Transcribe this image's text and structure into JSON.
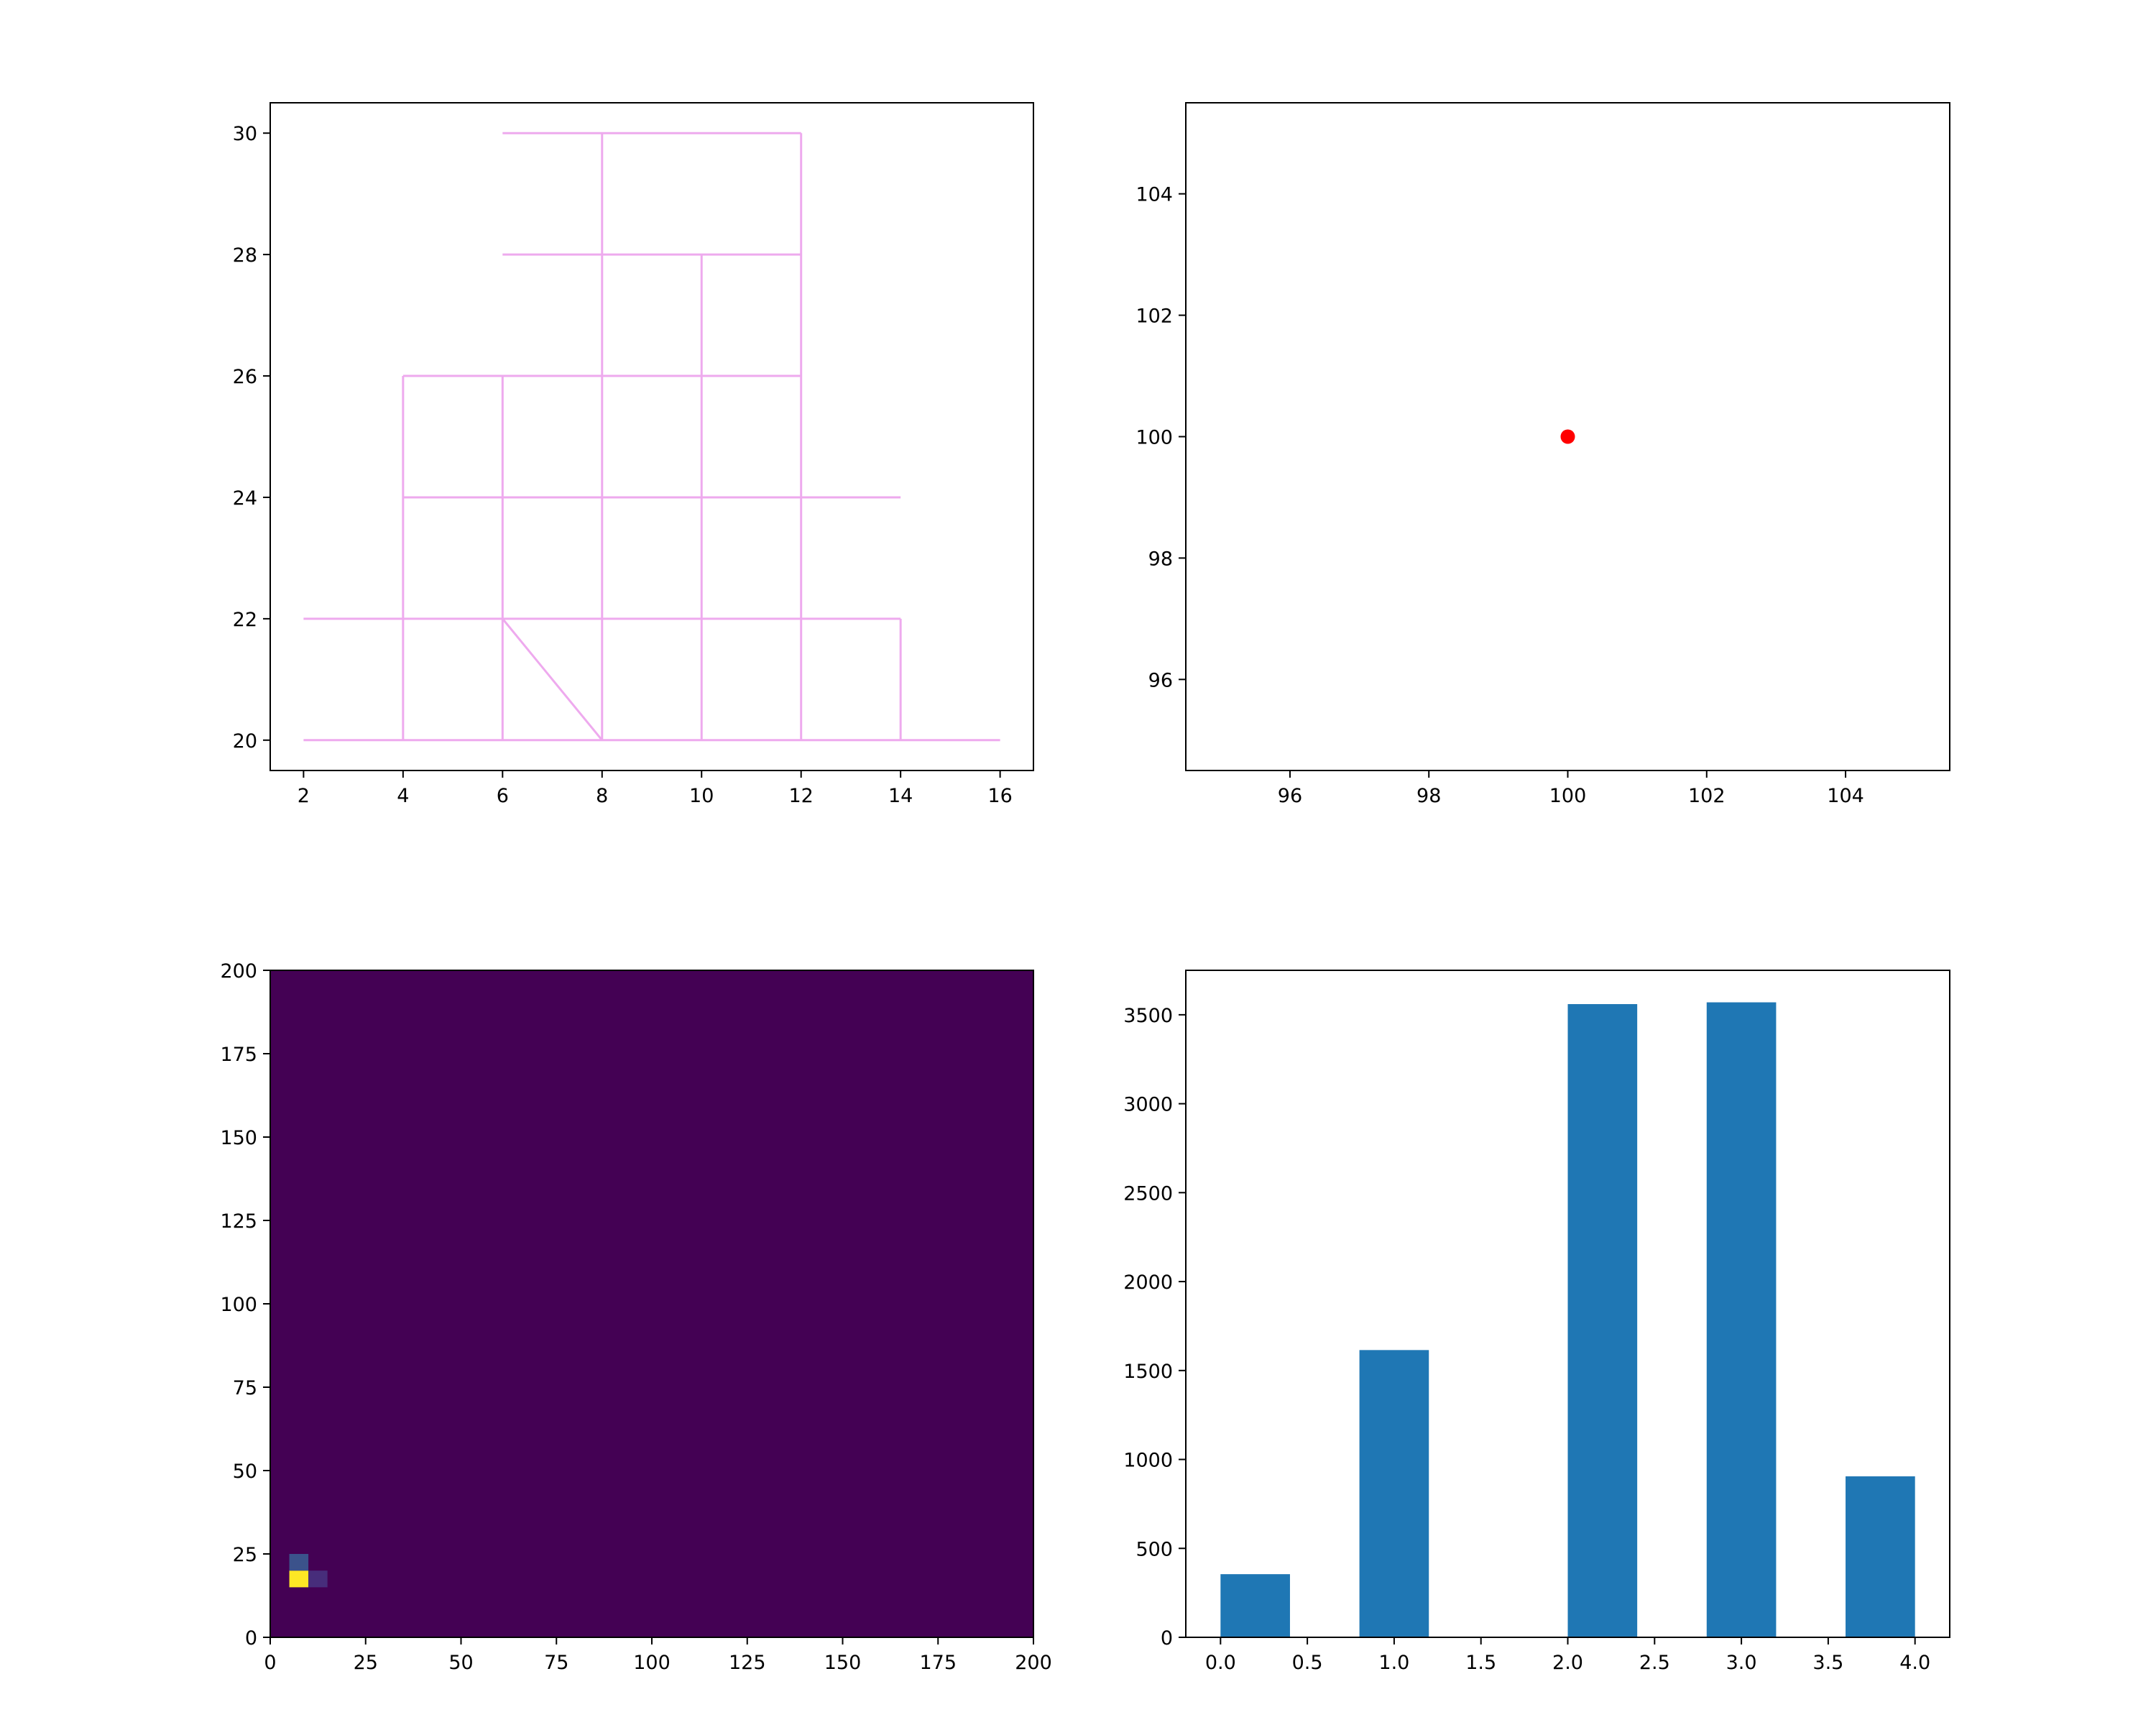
{
  "chart_data": [
    {
      "type": "line",
      "title": "",
      "xlabel": "",
      "ylabel": "",
      "xlim": [
        1.33,
        16.67
      ],
      "ylim": [
        19.5,
        30.5
      ],
      "xticks": [
        2,
        4,
        6,
        8,
        10,
        12,
        14,
        16
      ],
      "yticks": [
        20,
        22,
        24,
        26,
        28,
        30
      ],
      "grid": false,
      "color": "#eeaaee",
      "segments": [
        [
          [
            2,
            20
          ],
          [
            16,
            20
          ]
        ],
        [
          [
            2,
            22
          ],
          [
            14,
            22
          ]
        ],
        [
          [
            4,
            24
          ],
          [
            14,
            24
          ]
        ],
        [
          [
            4,
            26
          ],
          [
            12,
            26
          ]
        ],
        [
          [
            6,
            28
          ],
          [
            12,
            28
          ]
        ],
        [
          [
            6,
            30
          ],
          [
            12,
            30
          ]
        ],
        [
          [
            4,
            20
          ],
          [
            4,
            26
          ]
        ],
        [
          [
            6,
            20
          ],
          [
            6,
            26
          ]
        ],
        [
          [
            8,
            20
          ],
          [
            8,
            30
          ]
        ],
        [
          [
            10,
            20
          ],
          [
            10,
            28
          ]
        ],
        [
          [
            12,
            20
          ],
          [
            12,
            30
          ]
        ],
        [
          [
            14,
            20
          ],
          [
            14,
            22
          ]
        ],
        [
          [
            6,
            22
          ],
          [
            8,
            20
          ]
        ]
      ]
    },
    {
      "type": "scatter",
      "title": "",
      "xlabel": "",
      "ylabel": "",
      "xlim": [
        94.5,
        105.5
      ],
      "ylim": [
        94.5,
        105.5
      ],
      "xticks": [
        96,
        98,
        100,
        102,
        104
      ],
      "yticks": [
        96,
        98,
        100,
        102,
        104
      ],
      "grid": false,
      "color": "#ff0000",
      "points": [
        [
          100,
          100
        ]
      ]
    },
    {
      "type": "heatmap",
      "title": "",
      "xlabel": "",
      "ylabel": "",
      "xlim": [
        0,
        200
      ],
      "ylim": [
        0,
        200
      ],
      "xticks": [
        0,
        25,
        50,
        75,
        100,
        125,
        150,
        175,
        200
      ],
      "yticks": [
        0,
        25,
        50,
        75,
        100,
        125,
        150,
        175,
        200
      ],
      "colormap": "viridis",
      "background": "#440154",
      "bin_size": 5,
      "cells": [
        {
          "x": 5,
          "y": 15,
          "color": "#fde725"
        },
        {
          "x": 5,
          "y": 20,
          "color": "#3b528b"
        },
        {
          "x": 10,
          "y": 15,
          "color": "#472d7b"
        }
      ]
    },
    {
      "type": "bar",
      "title": "",
      "xlabel": "",
      "ylabel": "",
      "xlim": [
        -0.2,
        4.2
      ],
      "ylim": [
        0,
        3750
      ],
      "xticks": [
        0.0,
        0.5,
        1.0,
        1.5,
        2.0,
        2.5,
        3.0,
        3.5,
        4.0
      ],
      "yticks": [
        0,
        500,
        1000,
        1500,
        2000,
        2500,
        3000,
        3500
      ],
      "grid": false,
      "color": "#1f77b4",
      "bins": [
        {
          "left": 0.0,
          "right": 0.4,
          "value": 355
        },
        {
          "left": 0.4,
          "right": 0.8,
          "value": 0
        },
        {
          "left": 0.8,
          "right": 1.2,
          "value": 1615
        },
        {
          "left": 1.2,
          "right": 1.6,
          "value": 0
        },
        {
          "left": 1.6,
          "right": 2.0,
          "value": 0
        },
        {
          "left": 2.0,
          "right": 2.4,
          "value": 3560
        },
        {
          "left": 2.4,
          "right": 2.8,
          "value": 0
        },
        {
          "left": 2.8,
          "right": 3.2,
          "value": 3570
        },
        {
          "left": 3.2,
          "right": 3.6,
          "value": 0
        },
        {
          "left": 3.6,
          "right": 4.0,
          "value": 905
        }
      ]
    }
  ]
}
